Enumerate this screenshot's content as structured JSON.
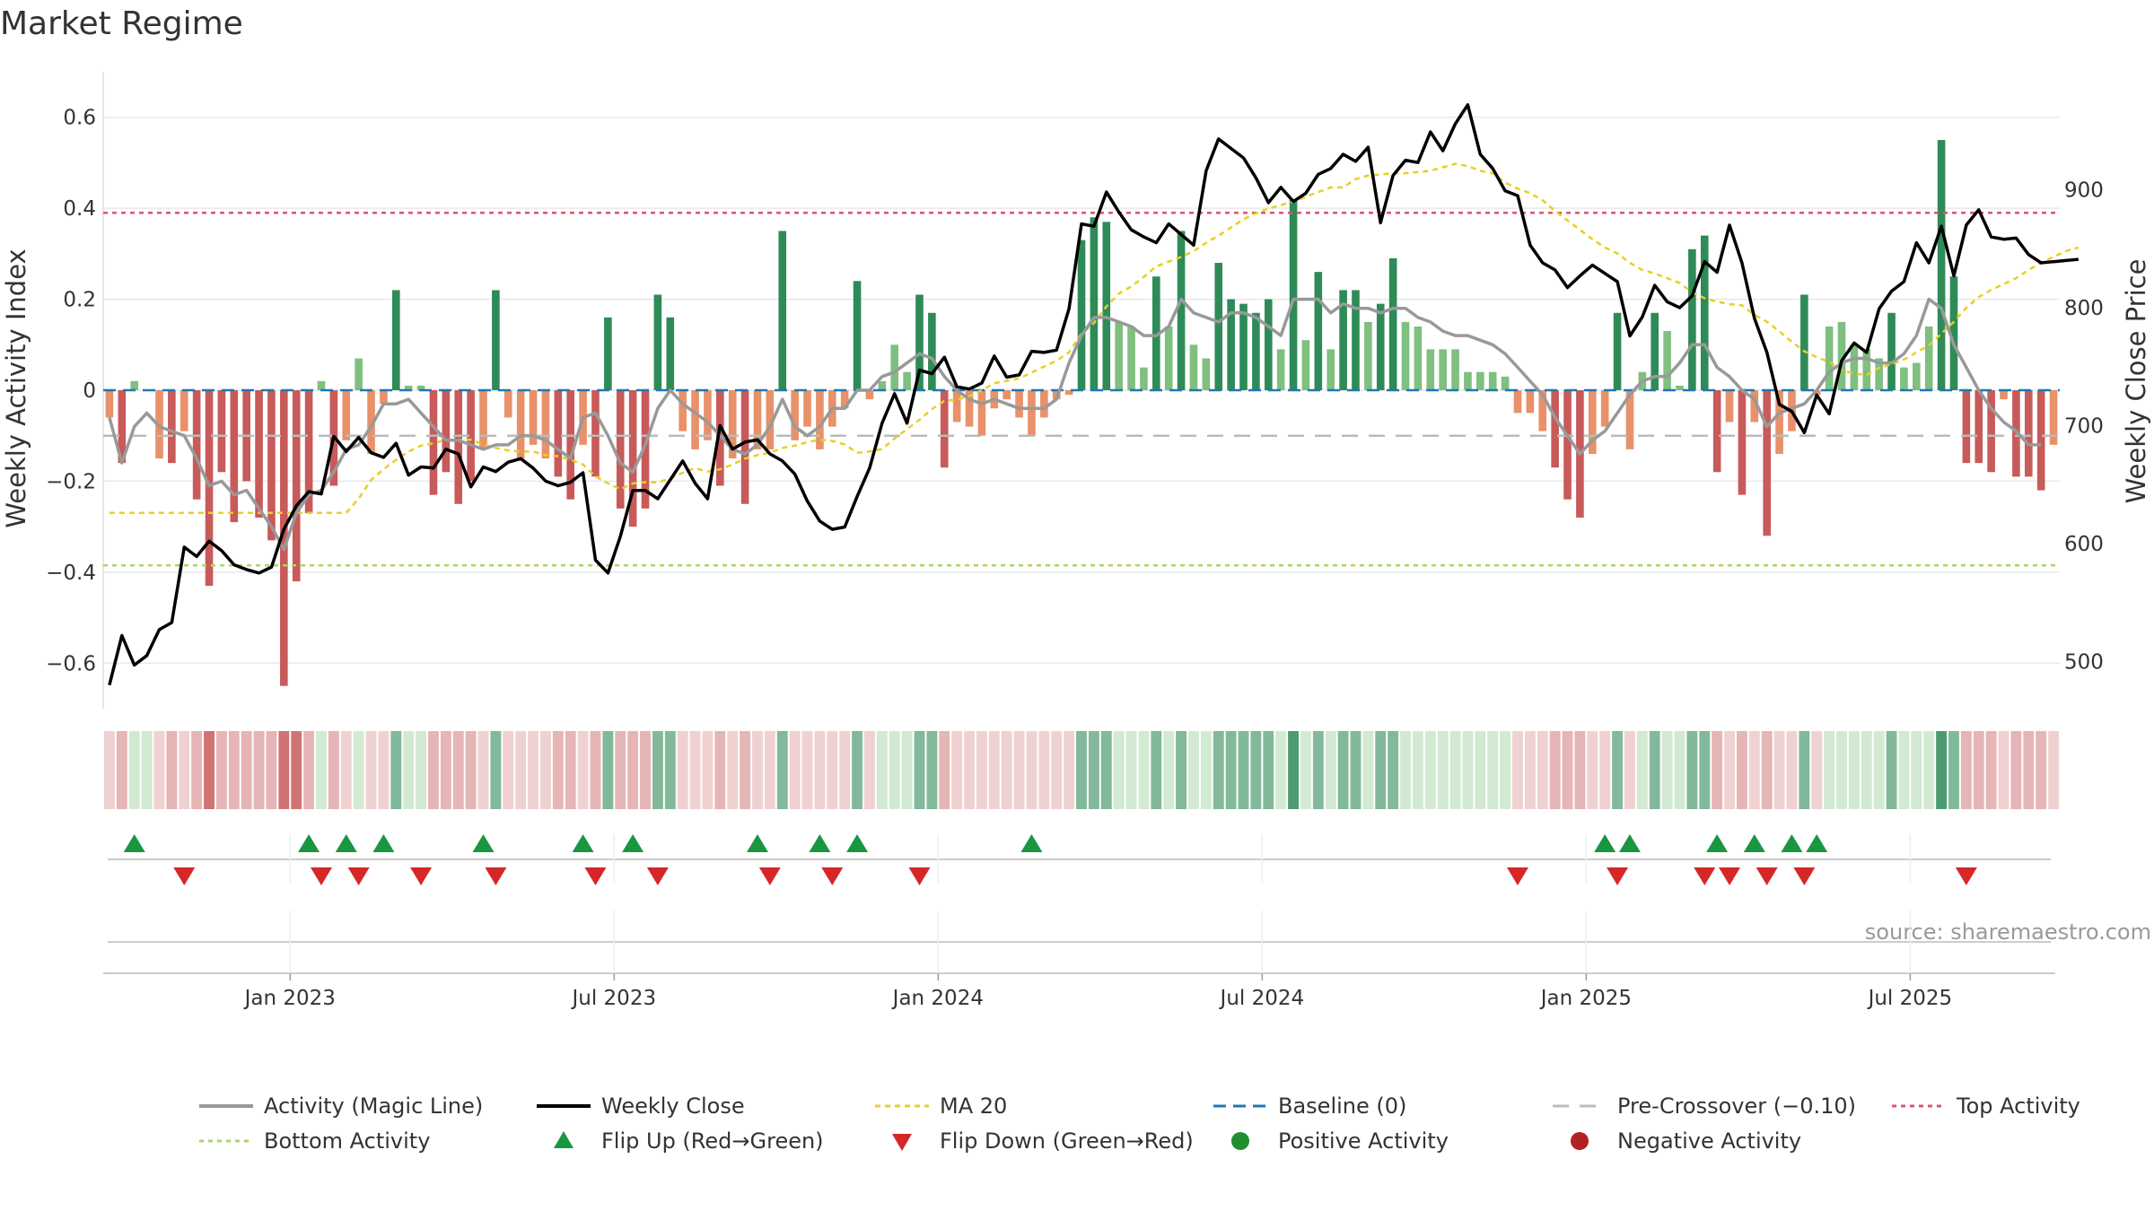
{
  "chart_data": {
    "type": "bar",
    "title": "Market Regime",
    "ylabel_left": "Weekly Activity Index",
    "ylabel_right": "Weekly Close Price",
    "source": "source: sharemaestro.com",
    "left_ticks": [
      "0.6",
      "0.4",
      "0.2",
      "0",
      "−0.2",
      "−0.4",
      "−0.6"
    ],
    "left_tick_values": [
      0.6,
      0.4,
      0.2,
      0,
      -0.2,
      -0.4,
      -0.6
    ],
    "right_ticks": [
      "900",
      "800",
      "700",
      "600",
      "500"
    ],
    "right_tick_values": [
      900,
      800,
      700,
      600,
      500
    ],
    "x_ticks": [
      "Jan 2023",
      "Jul 2023",
      "Jan 2024",
      "Jul 2024",
      "Jan 2025",
      "Jul 2025"
    ],
    "x_tick_weeks": [
      14.5,
      40.5,
      66.5,
      92.5,
      118.5,
      144.5
    ],
    "ylim_left": [
      -0.7,
      0.7
    ],
    "ylim_right": [
      460,
      1000
    ],
    "grid": true,
    "thresholds": {
      "top_activity": 0.39,
      "bottom_activity": -0.385,
      "pre_crossover": -0.1,
      "baseline": 0
    },
    "activity_values": [
      -0.06,
      -0.16,
      0.02,
      0.0,
      -0.15,
      -0.16,
      -0.09,
      -0.24,
      -0.43,
      -0.18,
      -0.29,
      -0.2,
      -0.28,
      -0.33,
      -0.65,
      -0.42,
      -0.27,
      0.02,
      -0.21,
      -0.11,
      0.07,
      -0.14,
      -0.03,
      0.22,
      0.01,
      0.01,
      -0.23,
      -0.18,
      -0.25,
      -0.2,
      -0.13,
      0.22,
      -0.06,
      -0.15,
      -0.12,
      -0.15,
      -0.19,
      -0.24,
      -0.12,
      -0.19,
      0.16,
      -0.26,
      -0.3,
      -0.26,
      0.21,
      0.16,
      -0.09,
      -0.13,
      -0.11,
      -0.21,
      -0.15,
      -0.25,
      -0.13,
      -0.13,
      0.35,
      -0.11,
      -0.08,
      -0.13,
      -0.08,
      -0.04,
      0.24,
      -0.02,
      0.02,
      0.1,
      0.04,
      0.21,
      0.17,
      -0.17,
      -0.07,
      -0.08,
      -0.1,
      -0.04,
      -0.02,
      -0.06,
      -0.1,
      -0.06,
      -0.02,
      -0.01,
      0.33,
      0.38,
      0.37,
      0.15,
      0.14,
      0.05,
      0.25,
      0.14,
      0.35,
      0.1,
      0.07,
      0.28,
      0.2,
      0.19,
      0.17,
      0.2,
      0.09,
      0.42,
      0.11,
      0.26,
      0.09,
      0.22,
      0.22,
      0.15,
      0.19,
      0.29,
      0.15,
      0.14,
      0.09,
      0.09,
      0.09,
      0.04,
      0.04,
      0.04,
      0.03,
      -0.05,
      -0.05,
      -0.09,
      -0.17,
      -0.24,
      -0.28,
      -0.14,
      -0.08,
      0.17,
      -0.13,
      0.04,
      0.17,
      0.13,
      0.01,
      0.31,
      0.34,
      -0.18,
      -0.07,
      -0.23,
      -0.07,
      -0.32,
      -0.14,
      -0.09,
      0.21,
      -0.01,
      0.14,
      0.15,
      0.1,
      0.09,
      0.07,
      0.17,
      0.05,
      0.06,
      0.14,
      0.55,
      0.25,
      -0.16,
      -0.16,
      -0.18,
      -0.02,
      -0.19,
      -0.19,
      -0.22,
      -0.12
    ],
    "series": [
      {
        "name": "Activity (Magic Line)",
        "color": "#999999",
        "values": [
          -0.06,
          -0.16,
          -0.08,
          -0.05,
          -0.08,
          -0.09,
          -0.1,
          -0.15,
          -0.21,
          -0.2,
          -0.23,
          -0.22,
          -0.26,
          -0.3,
          -0.35,
          -0.27,
          -0.23,
          -0.22,
          -0.18,
          -0.13,
          -0.12,
          -0.08,
          -0.03,
          -0.03,
          -0.02,
          -0.05,
          -0.08,
          -0.11,
          -0.11,
          -0.12,
          -0.13,
          -0.12,
          -0.12,
          -0.1,
          -0.1,
          -0.11,
          -0.13,
          -0.15,
          -0.06,
          -0.05,
          -0.1,
          -0.16,
          -0.18,
          -0.12,
          -0.04,
          0.0,
          -0.03,
          -0.05,
          -0.07,
          -0.1,
          -0.13,
          -0.14,
          -0.12,
          -0.08,
          -0.02,
          -0.08,
          -0.1,
          -0.08,
          -0.04,
          -0.04,
          0.0,
          0.0,
          0.03,
          0.04,
          0.06,
          0.08,
          0.07,
          0.03,
          0.0,
          -0.02,
          -0.03,
          -0.02,
          -0.03,
          -0.04,
          -0.04,
          -0.04,
          -0.02,
          0.06,
          0.12,
          0.16,
          0.16,
          0.15,
          0.14,
          0.12,
          0.12,
          0.14,
          0.2,
          0.17,
          0.16,
          0.15,
          0.17,
          0.17,
          0.16,
          0.14,
          0.12,
          0.2,
          0.2,
          0.2,
          0.17,
          0.19,
          0.18,
          0.18,
          0.17,
          0.18,
          0.18,
          0.16,
          0.15,
          0.13,
          0.12,
          0.12,
          0.11,
          0.1,
          0.08,
          0.05,
          0.02,
          -0.01,
          -0.06,
          -0.1,
          -0.14,
          -0.11,
          -0.09,
          -0.05,
          -0.01,
          0.02,
          0.03,
          0.03,
          0.06,
          0.1,
          0.1,
          0.05,
          0.03,
          0.0,
          -0.02,
          -0.08,
          -0.05,
          -0.04,
          -0.03,
          0.0,
          0.04,
          0.06,
          0.07,
          0.07,
          0.06,
          0.06,
          0.08,
          0.12,
          0.2,
          0.18,
          0.1,
          0.05,
          0.0,
          -0.04,
          -0.07,
          -0.09,
          -0.12,
          -0.12
        ]
      },
      {
        "name": "Weekly Close",
        "color": "#000000",
        "values": [
          480,
          522,
          497,
          505,
          527,
          533,
          597,
          589,
          602,
          594,
          582,
          578,
          575,
          580,
          612,
          632,
          644,
          642,
          691,
          678,
          690,
          677,
          673,
          685,
          658,
          665,
          664,
          680,
          676,
          648,
          665,
          661,
          669,
          672,
          664,
          653,
          649,
          652,
          660,
          586,
          575,
          606,
          645,
          645,
          638,
          654,
          670,
          651,
          638,
          700,
          680,
          686,
          688,
          676,
          670,
          659,
          636,
          619,
          612,
          614,
          640,
          664,
          702,
          727,
          702,
          747,
          744,
          758,
          733,
          731,
          736,
          759,
          741,
          743,
          763,
          762,
          764,
          799,
          871,
          869,
          898,
          881,
          866,
          860,
          855,
          871,
          862,
          853,
          916,
          943,
          935,
          927,
          910,
          889,
          902,
          890,
          897,
          913,
          918,
          930,
          924,
          936,
          872,
          912,
          925,
          923,
          949,
          933,
          956,
          972,
          930,
          918,
          899,
          895,
          853,
          838,
          832,
          817,
          827,
          836,
          829,
          822,
          776,
          792,
          819,
          805,
          800,
          810,
          839,
          830,
          870,
          838,
          791,
          762,
          718,
          712,
          694,
          726,
          710,
          755,
          770,
          762,
          799,
          814,
          822,
          855,
          838,
          869,
          827,
          870,
          883,
          860,
          858,
          859,
          845,
          838,
          839,
          840,
          841
        ]
      },
      {
        "name": "MA 20",
        "color": "#e8d020",
        "values": [
          626,
          626,
          626,
          626,
          626,
          626,
          626,
          626,
          626,
          626,
          626,
          626,
          626,
          626,
          626,
          626,
          626,
          626,
          626,
          626,
          638,
          654,
          663,
          671,
          678,
          683,
          685,
          688,
          688,
          688,
          684,
          681,
          679,
          678,
          678,
          675,
          674,
          671,
          667,
          657,
          651,
          646,
          651,
          652,
          652,
          655,
          660,
          664,
          661,
          663,
          667,
          672,
          675,
          677,
          681,
          683,
          686,
          688,
          687,
          684,
          677,
          678,
          680,
          689,
          697,
          705,
          714,
          721,
          722,
          725,
          730,
          736,
          738,
          740,
          745,
          750,
          755,
          762,
          778,
          787,
          801,
          812,
          818,
          826,
          835,
          839,
          843,
          848,
          855,
          861,
          868,
          875,
          880,
          884,
          887,
          890,
          894,
          898,
          902,
          902,
          909,
          912,
          913,
          914,
          914,
          915,
          916,
          919,
          922,
          920,
          916,
          914,
          906,
          901,
          897,
          891,
          882,
          874,
          866,
          858,
          851,
          846,
          838,
          832,
          829,
          825,
          821,
          813,
          808,
          805,
          803,
          802,
          794,
          788,
          780,
          771,
          763,
          758,
          754,
          747,
          744,
          743,
          749,
          752,
          756,
          762,
          768,
          778,
          788,
          800,
          809,
          815,
          820,
          825,
          832,
          838,
          843,
          848,
          851
        ]
      }
    ],
    "legend": {
      "items": [
        "Activity (Magic Line)",
        "Weekly Close",
        "MA 20",
        "Baseline (0)",
        "Pre-Crossover (−0.10)",
        "Top Activity",
        "Bottom Activity",
        "Flip Up (Red→Green)",
        "Flip Down (Green→Red)",
        "Positive Activity",
        "Negative Activity"
      ],
      "placement": "bottom"
    },
    "flip_up_weeks": [
      2,
      16,
      19,
      22,
      30,
      38,
      42,
      52,
      57,
      60,
      74,
      120,
      122,
      129,
      132,
      135,
      137
    ],
    "flip_down_weeks": [
      6,
      17,
      20,
      25,
      31,
      39,
      44,
      53,
      58,
      65,
      113,
      121,
      128,
      130,
      133,
      136,
      149
    ],
    "colors": {
      "strong_pos": "#2e8b57",
      "weak_pos": "#7fbf7f",
      "strong_neg": "#c85a5a",
      "weak_neg": "#e8916a",
      "top_line": "#d9566b",
      "bottom_line": "#a8d86a",
      "baseline": "#1f77b4",
      "pre_crossover": "#bbbbbb",
      "flip_up": "#1a9641",
      "flip_down": "#d62728",
      "positive_dot": "#1f8f2f",
      "negative_dot": "#b22222"
    }
  }
}
